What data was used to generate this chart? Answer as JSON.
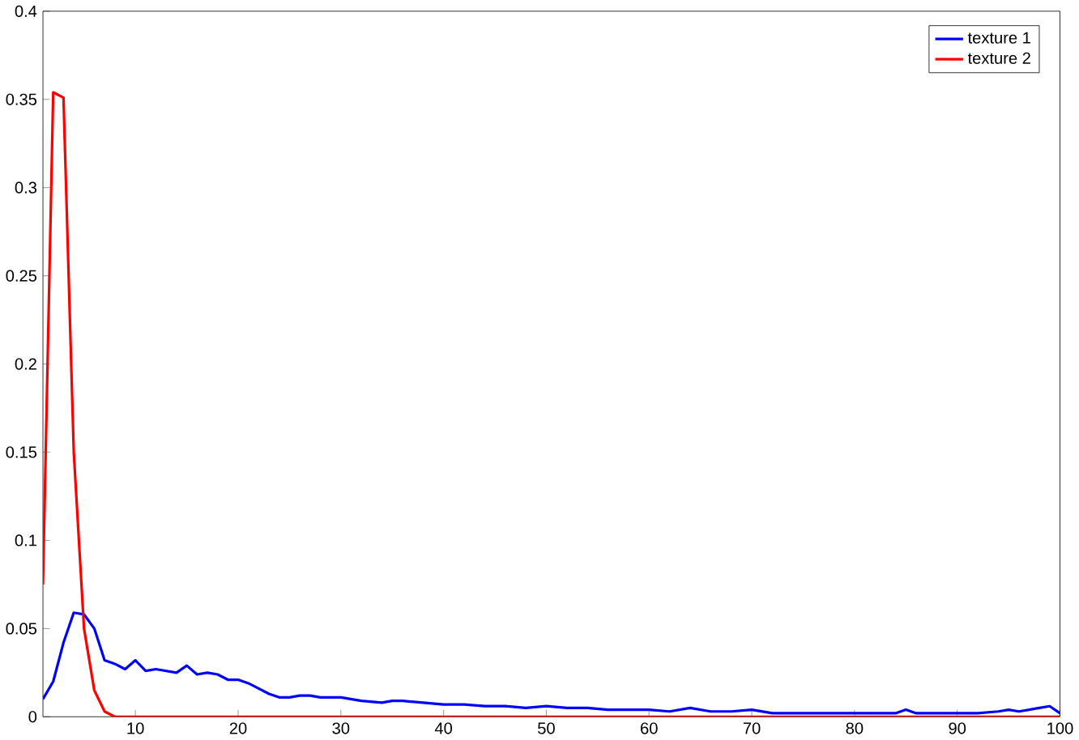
{
  "chart_data": {
    "type": "line",
    "xlim": [
      1,
      100
    ],
    "ylim": [
      0,
      0.4
    ],
    "xticks": [
      10,
      20,
      30,
      40,
      50,
      60,
      70,
      80,
      90,
      100
    ],
    "yticks": [
      0,
      0.05,
      0.1,
      0.15,
      0.2,
      0.25,
      0.3,
      0.35,
      0.4
    ],
    "legend": "top right",
    "grid": false,
    "marker": "none",
    "line_style": "solid",
    "series": [
      {
        "name": "texture 1",
        "color": "#0000ff",
        "x": [
          1,
          2,
          3,
          4,
          5,
          6,
          7,
          8,
          9,
          10,
          11,
          12,
          13,
          14,
          15,
          16,
          17,
          18,
          19,
          20,
          21,
          22,
          23,
          24,
          25,
          26,
          27,
          28,
          29,
          30,
          32,
          34,
          35,
          36,
          38,
          40,
          42,
          44,
          46,
          48,
          50,
          52,
          54,
          56,
          58,
          60,
          62,
          64,
          66,
          68,
          70,
          72,
          74,
          76,
          78,
          80,
          82,
          84,
          85,
          86,
          88,
          90,
          92,
          94,
          95,
          96,
          97,
          98,
          99,
          100
        ],
        "values": [
          0.01,
          0.02,
          0.042,
          0.059,
          0.058,
          0.05,
          0.032,
          0.03,
          0.027,
          0.032,
          0.026,
          0.027,
          0.026,
          0.025,
          0.029,
          0.024,
          0.025,
          0.024,
          0.021,
          0.021,
          0.019,
          0.016,
          0.013,
          0.011,
          0.011,
          0.012,
          0.012,
          0.011,
          0.011,
          0.011,
          0.009,
          0.008,
          0.009,
          0.009,
          0.008,
          0.007,
          0.007,
          0.006,
          0.006,
          0.005,
          0.006,
          0.005,
          0.005,
          0.004,
          0.004,
          0.004,
          0.003,
          0.005,
          0.003,
          0.003,
          0.004,
          0.002,
          0.002,
          0.002,
          0.002,
          0.002,
          0.002,
          0.002,
          0.004,
          0.002,
          0.002,
          0.002,
          0.002,
          0.003,
          0.004,
          0.003,
          0.004,
          0.005,
          0.006,
          0.002
        ]
      },
      {
        "name": "texture 2",
        "color": "#ff0000",
        "x": [
          1,
          2,
          3,
          4,
          5,
          6,
          7,
          8,
          100
        ],
        "values": [
          0.075,
          0.354,
          0.351,
          0.15,
          0.05,
          0.015,
          0.003,
          0,
          0
        ]
      }
    ]
  }
}
